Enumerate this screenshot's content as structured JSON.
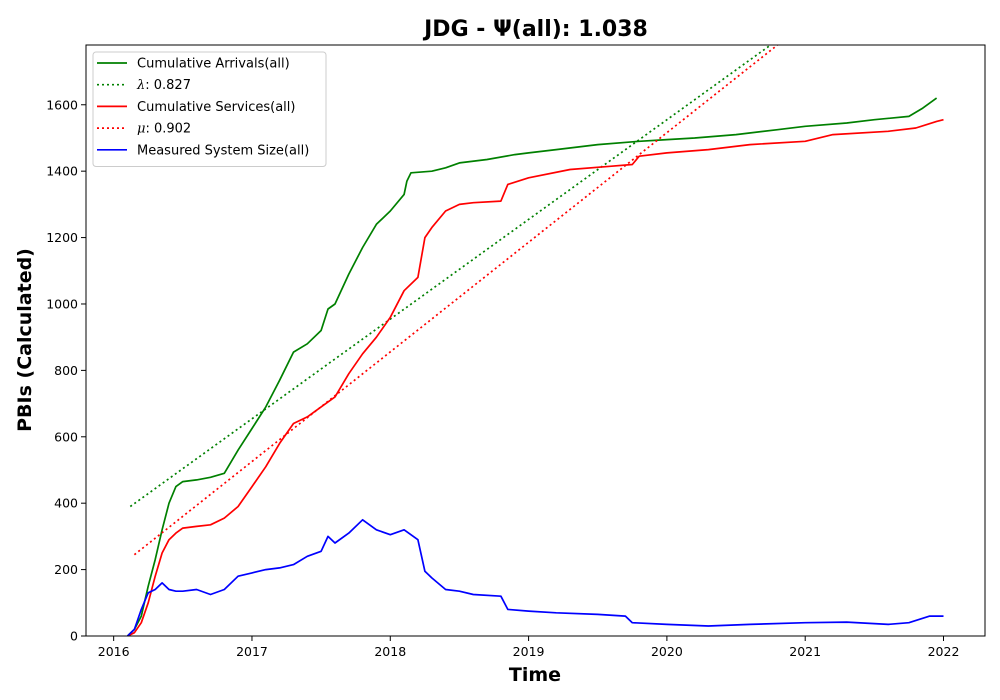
{
  "chart_data": {
    "type": "line",
    "title": "JDG -  Ψ(all): 1.038",
    "xlabel": "Time",
    "ylabel": "PBIs (Calculated)",
    "xlim": [
      2015.8,
      2022.3
    ],
    "ylim": [
      0,
      1780
    ],
    "x_ticks": [
      2016,
      2017,
      2018,
      2019,
      2020,
      2021,
      2022
    ],
    "x_tick_labels": [
      "2016",
      "2017",
      "2018",
      "2019",
      "2020",
      "2021",
      "2022"
    ],
    "y_ticks": [
      0,
      200,
      400,
      600,
      800,
      1000,
      1200,
      1400,
      1600
    ],
    "y_tick_labels": [
      "0",
      "200",
      "400",
      "600",
      "800",
      "1000",
      "1200",
      "1400",
      "1600"
    ],
    "grid": false,
    "legend_position": "top-left",
    "series": [
      {
        "name": "Cumulative Arrivals(all)",
        "color": "#008000",
        "style": "solid",
        "x": [
          2016.1,
          2016.15,
          2016.2,
          2016.25,
          2016.3,
          2016.35,
          2016.4,
          2016.45,
          2016.5,
          2016.6,
          2016.7,
          2016.8,
          2016.9,
          2017.0,
          2017.1,
          2017.2,
          2017.3,
          2017.4,
          2017.5,
          2017.55,
          2017.6,
          2017.7,
          2017.8,
          2017.9,
          2018.0,
          2018.1,
          2018.12,
          2018.15,
          2018.3,
          2018.4,
          2018.5,
          2018.7,
          2018.9,
          2019.0,
          2019.2,
          2019.5,
          2019.8,
          2020.0,
          2020.2,
          2020.5,
          2020.8,
          2021.0,
          2021.3,
          2021.5,
          2021.75,
          2021.85,
          2021.95
        ],
        "y": [
          0,
          20,
          60,
          150,
          230,
          320,
          400,
          450,
          465,
          470,
          478,
          490,
          560,
          625,
          690,
          770,
          855,
          880,
          920,
          985,
          1000,
          1090,
          1170,
          1240,
          1280,
          1330,
          1370,
          1395,
          1400,
          1410,
          1425,
          1435,
          1450,
          1455,
          1465,
          1480,
          1490,
          1495,
          1500,
          1510,
          1525,
          1535,
          1545,
          1555,
          1565,
          1590,
          1620
        ]
      },
      {
        "name": "λ: 0.827",
        "color": "#008000",
        "style": "dotted",
        "x": [
          2016.12,
          2020.75
        ],
        "y": [
          390,
          1780
        ]
      },
      {
        "name": "Cumulative Services(all)",
        "color": "#ff0000",
        "style": "solid",
        "x": [
          2016.1,
          2016.15,
          2016.2,
          2016.25,
          2016.3,
          2016.35,
          2016.4,
          2016.45,
          2016.5,
          2016.6,
          2016.7,
          2016.8,
          2016.9,
          2017.0,
          2017.1,
          2017.2,
          2017.3,
          2017.4,
          2017.5,
          2017.6,
          2017.7,
          2017.8,
          2017.9,
          2018.0,
          2018.1,
          2018.2,
          2018.25,
          2018.3,
          2018.4,
          2018.5,
          2018.6,
          2018.8,
          2018.85,
          2019.0,
          2019.3,
          2019.6,
          2019.75,
          2019.8,
          2020.0,
          2020.3,
          2020.6,
          2021.0,
          2021.2,
          2021.6,
          2021.8,
          2021.95,
          2022.0
        ],
        "y": [
          0,
          10,
          40,
          100,
          180,
          250,
          290,
          310,
          325,
          330,
          335,
          355,
          390,
          450,
          510,
          580,
          640,
          660,
          690,
          720,
          790,
          850,
          900,
          960,
          1040,
          1080,
          1200,
          1230,
          1280,
          1300,
          1305,
          1310,
          1360,
          1380,
          1405,
          1415,
          1420,
          1445,
          1455,
          1465,
          1480,
          1490,
          1510,
          1520,
          1530,
          1550,
          1555
        ]
      },
      {
        "name": "μ: 0.902",
        "color": "#ff0000",
        "style": "dotted",
        "x": [
          2016.15,
          2020.8
        ],
        "y": [
          245,
          1780
        ]
      },
      {
        "name": "Measured System Size(all)",
        "color": "#0000ff",
        "style": "solid",
        "x": [
          2016.1,
          2016.15,
          2016.2,
          2016.25,
          2016.3,
          2016.35,
          2016.4,
          2016.45,
          2016.5,
          2016.6,
          2016.7,
          2016.8,
          2016.9,
          2017.0,
          2017.1,
          2017.2,
          2017.3,
          2017.4,
          2017.5,
          2017.55,
          2017.6,
          2017.7,
          2017.8,
          2017.9,
          2018.0,
          2018.1,
          2018.2,
          2018.25,
          2018.3,
          2018.4,
          2018.5,
          2018.6,
          2018.8,
          2018.85,
          2019.0,
          2019.2,
          2019.5,
          2019.7,
          2019.75,
          2020.0,
          2020.3,
          2020.6,
          2021.0,
          2021.3,
          2021.6,
          2021.75,
          2021.9,
          2022.0
        ],
        "y": [
          0,
          20,
          80,
          130,
          140,
          160,
          140,
          135,
          135,
          140,
          125,
          140,
          180,
          190,
          200,
          205,
          215,
          240,
          255,
          300,
          280,
          310,
          350,
          320,
          305,
          320,
          290,
          195,
          175,
          140,
          135,
          125,
          120,
          80,
          75,
          70,
          65,
          60,
          40,
          35,
          30,
          35,
          40,
          42,
          35,
          40,
          60,
          60
        ]
      }
    ]
  }
}
